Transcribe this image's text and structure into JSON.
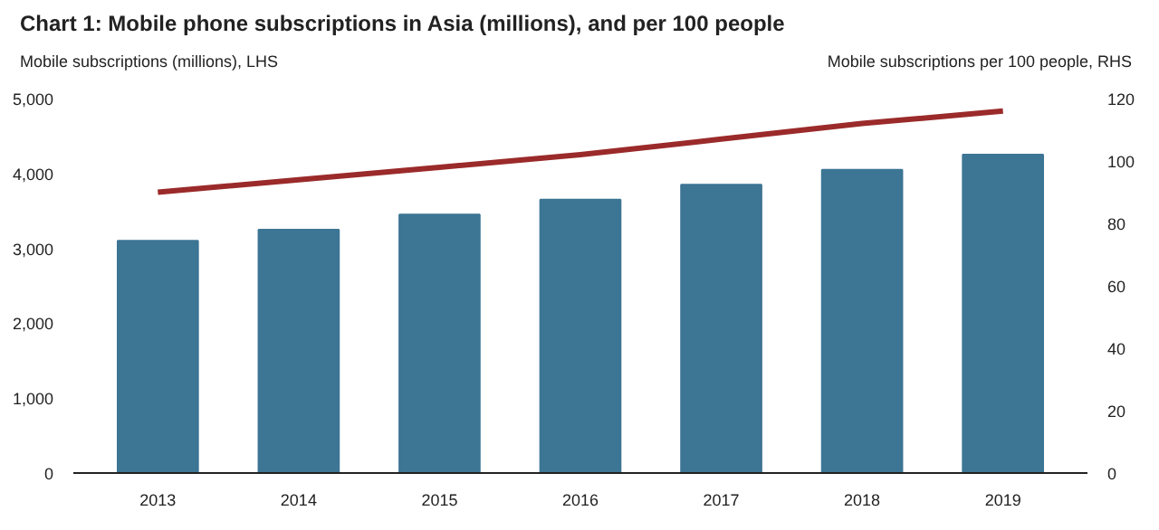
{
  "chart_data": {
    "type": "bar",
    "title": "Chart 1: Mobile phone subscriptions in Asia (millions), and per 100 people",
    "ylabel": "Mobile subscriptions (millions), LHS",
    "y2label": "Mobile subscriptions per 100 people, RHS",
    "categories": [
      "2013",
      "2014",
      "2015",
      "2016",
      "2017",
      "2018",
      "2019"
    ],
    "series": [
      {
        "color": "#3d7594",
        "values": [
          3100,
          3250,
          3450,
          3650,
          3850,
          4050,
          4250
        ]
      },
      {
        "type": "line",
        "axis": "y2",
        "color": "#9b2a2a",
        "values": [
          90,
          94,
          98,
          102,
          107,
          112,
          116
        ]
      }
    ],
    "ylim": [
      0,
      5000
    ],
    "yticks": [
      0,
      {
        "value": 1000,
        "label": "1,000"
      },
      {
        "value": 2000,
        "label": "2,000"
      },
      {
        "value": 3000,
        "label": "3,000"
      },
      {
        "value": 4000,
        "label": "4,000"
      },
      {
        "value": 5000,
        "label": "5,000"
      }
    ],
    "y2lim": [
      0,
      120
    ],
    "y2ticks": [
      0,
      20,
      40,
      60,
      80,
      100,
      120
    ],
    "grid": false,
    "marker": "none",
    "line_style": "solid"
  }
}
